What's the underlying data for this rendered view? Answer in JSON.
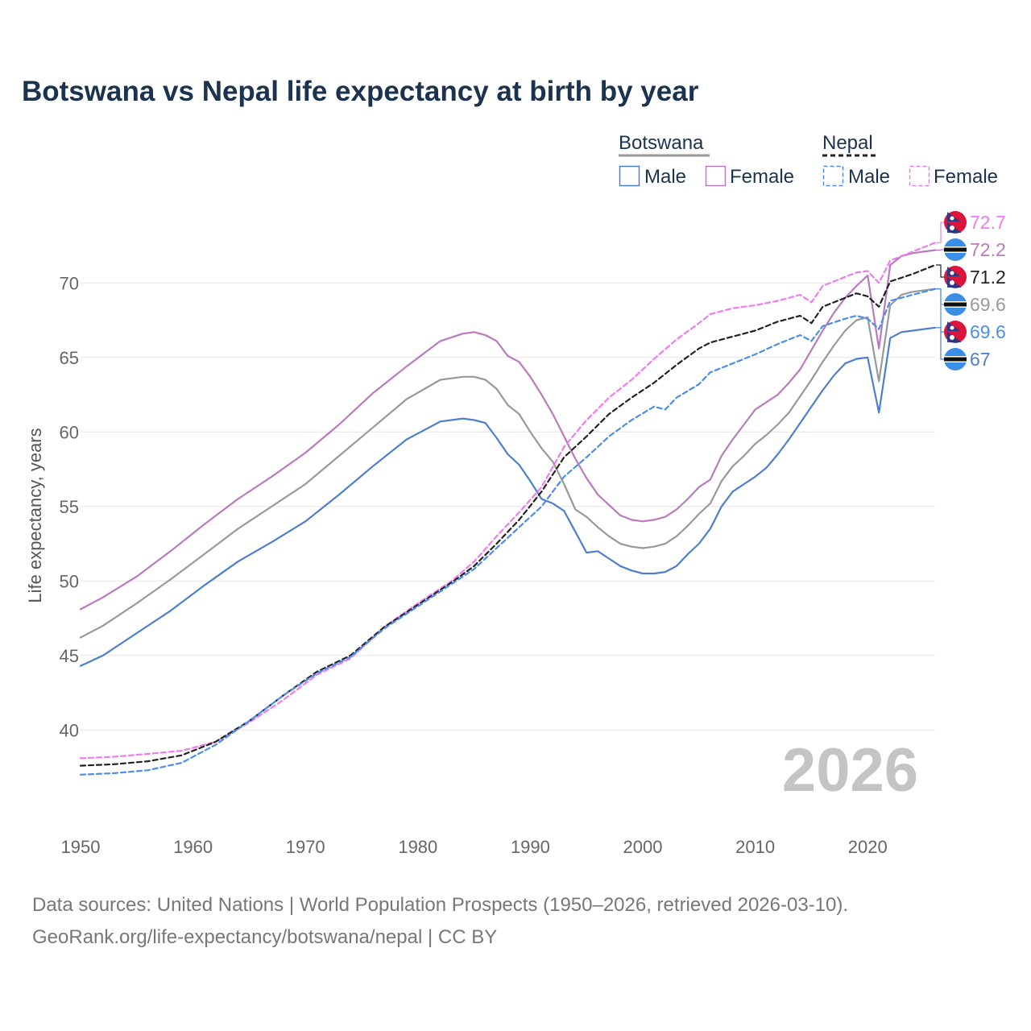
{
  "title": "Botswana vs Nepal life expectancy at birth by year",
  "source_line1": "Data sources: United Nations | World Population Prospects (1950–2026, retrieved 2026-03-10).",
  "source_line2": "GeoRank.org/life-expectancy/botswana/nepal | CC BY",
  "chart_data": {
    "type": "line",
    "title": "Botswana vs Nepal life expectancy at birth by year",
    "xlabel": "",
    "ylabel": "Life expectancy, years",
    "xlim": [
      1950,
      2026
    ],
    "ylim": [
      34.5,
      74.5
    ],
    "x_ticks": [
      1950,
      1960,
      1970,
      1980,
      1990,
      2000,
      2010,
      2020
    ],
    "y_ticks": [
      40,
      45,
      50,
      55,
      60,
      65,
      70
    ],
    "grid": true,
    "current_year": "2026",
    "legend": {
      "groups": [
        {
          "name": "Botswana",
          "style": "solid",
          "color": "#999999",
          "items": [
            "Male",
            "Female"
          ]
        },
        {
          "name": "Nepal",
          "style": "dashed",
          "color": "#222222",
          "items": [
            "Male",
            "Female"
          ]
        }
      ]
    },
    "series": [
      {
        "name": "Botswana Female",
        "color": "#b97bbe",
        "dashed": false,
        "end_label": "72.2",
        "flag": "botswana",
        "points": [
          [
            1950,
            48.1
          ],
          [
            1952,
            48.9
          ],
          [
            1955,
            50.3
          ],
          [
            1958,
            52.0
          ],
          [
            1961,
            53.8
          ],
          [
            1964,
            55.5
          ],
          [
            1967,
            57.0
          ],
          [
            1970,
            58.6
          ],
          [
            1973,
            60.5
          ],
          [
            1976,
            62.6
          ],
          [
            1979,
            64.4
          ],
          [
            1982,
            66.1
          ],
          [
            1984,
            66.6
          ],
          [
            1985,
            66.7
          ],
          [
            1986,
            66.5
          ],
          [
            1987,
            66.1
          ],
          [
            1988,
            65.1
          ],
          [
            1989,
            64.7
          ],
          [
            1990,
            63.7
          ],
          [
            1991,
            62.5
          ],
          [
            1992,
            61.2
          ],
          [
            1993,
            59.7
          ],
          [
            1994,
            58.2
          ],
          [
            1995,
            56.9
          ],
          [
            1996,
            55.8
          ],
          [
            1997,
            55.1
          ],
          [
            1998,
            54.4
          ],
          [
            1999,
            54.1
          ],
          [
            2000,
            54.0
          ],
          [
            2001,
            54.1
          ],
          [
            2002,
            54.3
          ],
          [
            2003,
            54.8
          ],
          [
            2004,
            55.5
          ],
          [
            2005,
            56.3
          ],
          [
            2006,
            56.8
          ],
          [
            2007,
            58.4
          ],
          [
            2008,
            59.5
          ],
          [
            2009,
            60.5
          ],
          [
            2010,
            61.5
          ],
          [
            2011,
            62.0
          ],
          [
            2012,
            62.5
          ],
          [
            2013,
            63.3
          ],
          [
            2014,
            64.2
          ],
          [
            2015,
            65.5
          ],
          [
            2016,
            66.8
          ],
          [
            2017,
            68.0
          ],
          [
            2018,
            69.0
          ],
          [
            2019,
            69.8
          ],
          [
            2020,
            70.5
          ],
          [
            2021,
            65.6
          ],
          [
            2022,
            71.2
          ],
          [
            2023,
            71.8
          ],
          [
            2024,
            72.0
          ],
          [
            2025,
            72.1
          ],
          [
            2026,
            72.2
          ]
        ]
      },
      {
        "name": "Botswana Both sexes",
        "color": "#999999",
        "dashed": false,
        "end_label": "69.6",
        "flag": "botswana",
        "points": [
          [
            1950,
            46.2
          ],
          [
            1952,
            47.0
          ],
          [
            1955,
            48.5
          ],
          [
            1958,
            50.1
          ],
          [
            1961,
            51.8
          ],
          [
            1964,
            53.5
          ],
          [
            1967,
            55.0
          ],
          [
            1970,
            56.5
          ],
          [
            1973,
            58.4
          ],
          [
            1976,
            60.3
          ],
          [
            1979,
            62.2
          ],
          [
            1982,
            63.5
          ],
          [
            1984,
            63.7
          ],
          [
            1985,
            63.7
          ],
          [
            1986,
            63.5
          ],
          [
            1987,
            62.9
          ],
          [
            1988,
            61.8
          ],
          [
            1989,
            61.2
          ],
          [
            1990,
            60.0
          ],
          [
            1991,
            58.9
          ],
          [
            1992,
            58.0
          ],
          [
            1993,
            56.5
          ],
          [
            1994,
            54.8
          ],
          [
            1995,
            54.3
          ],
          [
            1996,
            53.6
          ],
          [
            1997,
            53.0
          ],
          [
            1998,
            52.5
          ],
          [
            1999,
            52.3
          ],
          [
            2000,
            52.2
          ],
          [
            2001,
            52.3
          ],
          [
            2002,
            52.5
          ],
          [
            2003,
            53.0
          ],
          [
            2004,
            53.7
          ],
          [
            2005,
            54.5
          ],
          [
            2006,
            55.2
          ],
          [
            2007,
            56.7
          ],
          [
            2008,
            57.7
          ],
          [
            2009,
            58.4
          ],
          [
            2010,
            59.2
          ],
          [
            2011,
            59.8
          ],
          [
            2012,
            60.5
          ],
          [
            2013,
            61.3
          ],
          [
            2014,
            62.4
          ],
          [
            2015,
            63.5
          ],
          [
            2016,
            64.7
          ],
          [
            2017,
            65.8
          ],
          [
            2018,
            66.8
          ],
          [
            2019,
            67.5
          ],
          [
            2020,
            67.7
          ],
          [
            2021,
            63.4
          ],
          [
            2022,
            68.5
          ],
          [
            2023,
            69.2
          ],
          [
            2024,
            69.4
          ],
          [
            2025,
            69.5
          ],
          [
            2026,
            69.6
          ]
        ]
      },
      {
        "name": "Botswana Male",
        "color": "#4e7fcd",
        "dashed": false,
        "end_label": "67",
        "flag": "botswana",
        "points": [
          [
            1950,
            44.3
          ],
          [
            1952,
            45.0
          ],
          [
            1955,
            46.5
          ],
          [
            1958,
            48.0
          ],
          [
            1961,
            49.7
          ],
          [
            1964,
            51.3
          ],
          [
            1967,
            52.6
          ],
          [
            1970,
            54.0
          ],
          [
            1973,
            55.8
          ],
          [
            1976,
            57.7
          ],
          [
            1979,
            59.5
          ],
          [
            1982,
            60.7
          ],
          [
            1984,
            60.9
          ],
          [
            1985,
            60.8
          ],
          [
            1986,
            60.6
          ],
          [
            1987,
            59.6
          ],
          [
            1988,
            58.5
          ],
          [
            1989,
            57.8
          ],
          [
            1990,
            56.7
          ],
          [
            1991,
            55.5
          ],
          [
            1992,
            55.2
          ],
          [
            1993,
            54.7
          ],
          [
            1994,
            53.3
          ],
          [
            1995,
            51.9
          ],
          [
            1996,
            52.0
          ],
          [
            1997,
            51.5
          ],
          [
            1998,
            51.0
          ],
          [
            1999,
            50.7
          ],
          [
            2000,
            50.5
          ],
          [
            2001,
            50.5
          ],
          [
            2002,
            50.6
          ],
          [
            2003,
            51.0
          ],
          [
            2004,
            51.8
          ],
          [
            2005,
            52.5
          ],
          [
            2006,
            53.5
          ],
          [
            2007,
            55.0
          ],
          [
            2008,
            56.0
          ],
          [
            2009,
            56.5
          ],
          [
            2010,
            57.0
          ],
          [
            2011,
            57.6
          ],
          [
            2012,
            58.5
          ],
          [
            2013,
            59.5
          ],
          [
            2014,
            60.6
          ],
          [
            2015,
            61.7
          ],
          [
            2016,
            62.8
          ],
          [
            2017,
            63.8
          ],
          [
            2018,
            64.6
          ],
          [
            2019,
            64.9
          ],
          [
            2020,
            65.0
          ],
          [
            2021,
            61.3
          ],
          [
            2022,
            66.3
          ],
          [
            2023,
            66.7
          ],
          [
            2024,
            66.8
          ],
          [
            2025,
            66.9
          ],
          [
            2026,
            67.0
          ]
        ]
      },
      {
        "name": "Nepal Female",
        "color": "#f17af0",
        "dashed": true,
        "end_label": "72.7",
        "flag": "nepal",
        "points": [
          [
            1950,
            38.1
          ],
          [
            1953,
            38.2
          ],
          [
            1956,
            38.4
          ],
          [
            1959,
            38.6
          ],
          [
            1962,
            39.2
          ],
          [
            1965,
            40.5
          ],
          [
            1968,
            42.0
          ],
          [
            1971,
            43.7
          ],
          [
            1974,
            44.8
          ],
          [
            1977,
            46.9
          ],
          [
            1980,
            48.5
          ],
          [
            1983,
            50.0
          ],
          [
            1985,
            51.3
          ],
          [
            1987,
            53.0
          ],
          [
            1989,
            54.6
          ],
          [
            1991,
            56.3
          ],
          [
            1993,
            59.0
          ],
          [
            1995,
            60.8
          ],
          [
            1997,
            62.3
          ],
          [
            1999,
            63.5
          ],
          [
            2001,
            64.9
          ],
          [
            2003,
            66.2
          ],
          [
            2005,
            67.3
          ],
          [
            2006,
            67.9
          ],
          [
            2008,
            68.3
          ],
          [
            2010,
            68.5
          ],
          [
            2012,
            68.8
          ],
          [
            2014,
            69.2
          ],
          [
            2015,
            68.7
          ],
          [
            2016,
            69.8
          ],
          [
            2018,
            70.4
          ],
          [
            2019,
            70.7
          ],
          [
            2020,
            70.8
          ],
          [
            2021,
            70.0
          ],
          [
            2022,
            71.5
          ],
          [
            2024,
            72.1
          ],
          [
            2026,
            72.7
          ]
        ]
      },
      {
        "name": "Nepal Both sexes",
        "color": "#222222",
        "dashed": true,
        "end_label": "71.2",
        "flag": "nepal",
        "points": [
          [
            1950,
            37.6
          ],
          [
            1953,
            37.7
          ],
          [
            1956,
            37.9
          ],
          [
            1959,
            38.3
          ],
          [
            1962,
            39.2
          ],
          [
            1965,
            40.6
          ],
          [
            1968,
            42.3
          ],
          [
            1971,
            43.9
          ],
          [
            1974,
            45.0
          ],
          [
            1977,
            46.9
          ],
          [
            1980,
            48.4
          ],
          [
            1983,
            49.9
          ],
          [
            1985,
            51.0
          ],
          [
            1987,
            52.5
          ],
          [
            1989,
            54.1
          ],
          [
            1991,
            56.0
          ],
          [
            1993,
            58.3
          ],
          [
            1995,
            59.7
          ],
          [
            1997,
            61.2
          ],
          [
            1999,
            62.3
          ],
          [
            2001,
            63.3
          ],
          [
            2003,
            64.5
          ],
          [
            2005,
            65.6
          ],
          [
            2006,
            66.0
          ],
          [
            2008,
            66.4
          ],
          [
            2010,
            66.8
          ],
          [
            2012,
            67.4
          ],
          [
            2014,
            67.8
          ],
          [
            2015,
            67.3
          ],
          [
            2016,
            68.4
          ],
          [
            2018,
            69.0
          ],
          [
            2019,
            69.3
          ],
          [
            2020,
            69.1
          ],
          [
            2021,
            68.4
          ],
          [
            2022,
            70.1
          ],
          [
            2024,
            70.6
          ],
          [
            2026,
            71.2
          ]
        ]
      },
      {
        "name": "Nepal Male",
        "color": "#4a8eea",
        "dashed": true,
        "end_label": "69.6",
        "flag": "nepal",
        "points": [
          [
            1950,
            37.0
          ],
          [
            1953,
            37.1
          ],
          [
            1956,
            37.3
          ],
          [
            1959,
            37.8
          ],
          [
            1962,
            39.0
          ],
          [
            1965,
            40.6
          ],
          [
            1968,
            42.3
          ],
          [
            1971,
            43.8
          ],
          [
            1974,
            44.9
          ],
          [
            1977,
            46.8
          ],
          [
            1980,
            48.3
          ],
          [
            1983,
            49.8
          ],
          [
            1985,
            50.8
          ],
          [
            1987,
            52.2
          ],
          [
            1989,
            53.6
          ],
          [
            1991,
            55.0
          ],
          [
            1993,
            57.0
          ],
          [
            1995,
            58.3
          ],
          [
            1997,
            59.7
          ],
          [
            1999,
            60.8
          ],
          [
            2001,
            61.7
          ],
          [
            2002,
            61.5
          ],
          [
            2003,
            62.3
          ],
          [
            2005,
            63.2
          ],
          [
            2006,
            64.0
          ],
          [
            2008,
            64.6
          ],
          [
            2010,
            65.2
          ],
          [
            2012,
            65.9
          ],
          [
            2014,
            66.5
          ],
          [
            2015,
            66.1
          ],
          [
            2016,
            67.1
          ],
          [
            2018,
            67.6
          ],
          [
            2019,
            67.8
          ],
          [
            2020,
            67.6
          ],
          [
            2021,
            66.9
          ],
          [
            2022,
            68.8
          ],
          [
            2024,
            69.2
          ],
          [
            2026,
            69.6
          ]
        ]
      }
    ]
  }
}
